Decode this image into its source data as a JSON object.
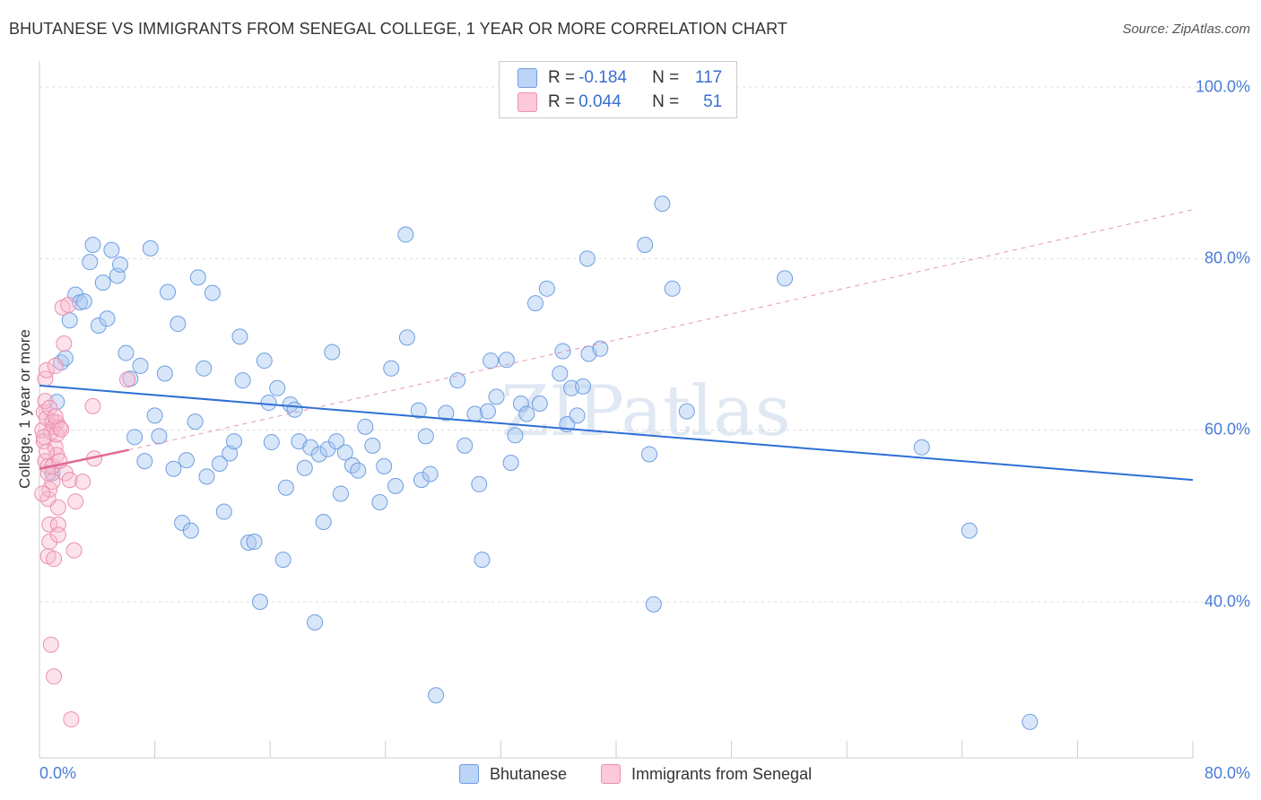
{
  "title": "BHUTANESE VS IMMIGRANTS FROM SENEGAL COLLEGE, 1 YEAR OR MORE CORRELATION CHART",
  "source": "Source: ZipAtlas.com",
  "watermark": "ZIPatlas",
  "legend": {
    "r_label": "R =",
    "n_label": "N =",
    "rows": [
      {
        "r": "-0.184",
        "n": "117",
        "color": "#a9c7f2"
      },
      {
        "r": "0.044",
        "n": "51",
        "color": "#f7b9ce"
      }
    ]
  },
  "chart_data": {
    "type": "scatter",
    "title": "BHUTANESE VS IMMIGRANTS FROM SENEGAL COLLEGE, 1 YEAR OR MORE CORRELATION CHART",
    "xlabel": "",
    "ylabel": "College, 1 year or more",
    "xlim": [
      0,
      80
    ],
    "ylim": [
      20,
      100
    ],
    "x_tick_labels": [
      "0.0%",
      "80.0%"
    ],
    "y_tick_labels": [
      "100.0%",
      "80.0%",
      "60.0%",
      "40.0%"
    ],
    "y_ticks": [
      100,
      80,
      60,
      40
    ],
    "grid": "horizontal dashed",
    "legend_placement": "bottom-center",
    "colors": {
      "Bhutanese": "#6f9fe2",
      "Immigrants from Senegal": "#ec8fb0",
      "trend_blue": "#2e6fd6",
      "trend_pink": "#e06a93"
    },
    "series": [
      {
        "name": "Bhutanese",
        "trend": {
          "x": [
            0,
            80
          ],
          "y": [
            65.2,
            54.2
          ]
        },
        "points": [
          [
            1.2,
            63.3
          ],
          [
            1.5,
            67.9
          ],
          [
            1.8,
            68.4
          ],
          [
            2.1,
            72.8
          ],
          [
            2.5,
            75.8
          ],
          [
            2.8,
            74.9
          ],
          [
            3.1,
            75.0
          ],
          [
            3.5,
            79.6
          ],
          [
            3.7,
            81.6
          ],
          [
            4.1,
            72.2
          ],
          [
            4.4,
            77.2
          ],
          [
            4.7,
            73.0
          ],
          [
            5.0,
            81.0
          ],
          [
            5.4,
            78.0
          ],
          [
            5.6,
            79.3
          ],
          [
            6.0,
            69.0
          ],
          [
            6.3,
            66.0
          ],
          [
            6.6,
            59.2
          ],
          [
            7.0,
            67.5
          ],
          [
            7.3,
            56.4
          ],
          [
            7.7,
            81.2
          ],
          [
            8.0,
            61.7
          ],
          [
            8.3,
            59.3
          ],
          [
            8.7,
            66.6
          ],
          [
            8.9,
            76.1
          ],
          [
            9.3,
            55.5
          ],
          [
            9.6,
            72.4
          ],
          [
            9.9,
            49.2
          ],
          [
            10.2,
            56.5
          ],
          [
            10.5,
            48.3
          ],
          [
            10.8,
            61.0
          ],
          [
            11.0,
            77.8
          ],
          [
            11.4,
            67.2
          ],
          [
            11.6,
            54.6
          ],
          [
            12.0,
            76.0
          ],
          [
            12.5,
            56.1
          ],
          [
            12.8,
            50.5
          ],
          [
            13.2,
            57.3
          ],
          [
            13.5,
            58.7
          ],
          [
            13.9,
            70.9
          ],
          [
            14.1,
            65.8
          ],
          [
            14.5,
            46.9
          ],
          [
            14.9,
            47.0
          ],
          [
            15.3,
            40.0
          ],
          [
            15.6,
            68.1
          ],
          [
            15.9,
            63.2
          ],
          [
            16.1,
            58.6
          ],
          [
            16.5,
            64.9
          ],
          [
            16.9,
            44.9
          ],
          [
            17.1,
            53.3
          ],
          [
            17.4,
            63.0
          ],
          [
            17.7,
            62.4
          ],
          [
            18.0,
            58.7
          ],
          [
            18.4,
            55.6
          ],
          [
            18.8,
            58.0
          ],
          [
            19.1,
            37.6
          ],
          [
            19.4,
            57.2
          ],
          [
            19.7,
            49.3
          ],
          [
            20.0,
            57.8
          ],
          [
            20.3,
            69.1
          ],
          [
            20.6,
            58.7
          ],
          [
            20.9,
            52.6
          ],
          [
            21.2,
            57.4
          ],
          [
            21.7,
            55.9
          ],
          [
            22.1,
            55.3
          ],
          [
            22.6,
            60.4
          ],
          [
            23.1,
            58.2
          ],
          [
            23.6,
            51.6
          ],
          [
            23.9,
            55.8
          ],
          [
            24.4,
            67.2
          ],
          [
            24.7,
            53.5
          ],
          [
            25.5,
            70.8
          ],
          [
            25.4,
            82.8
          ],
          [
            26.3,
            62.3
          ],
          [
            26.5,
            54.2
          ],
          [
            26.8,
            59.3
          ],
          [
            27.1,
            54.9
          ],
          [
            27.5,
            29.1
          ],
          [
            28.2,
            62.0
          ],
          [
            29.0,
            65.8
          ],
          [
            29.5,
            58.2
          ],
          [
            30.2,
            61.9
          ],
          [
            30.5,
            53.7
          ],
          [
            30.7,
            44.9
          ],
          [
            31.1,
            62.2
          ],
          [
            31.3,
            68.1
          ],
          [
            31.7,
            63.9
          ],
          [
            32.4,
            68.2
          ],
          [
            32.7,
            56.2
          ],
          [
            33.0,
            59.4
          ],
          [
            33.4,
            63.1
          ],
          [
            33.8,
            61.9
          ],
          [
            34.4,
            74.8
          ],
          [
            34.7,
            63.1
          ],
          [
            35.2,
            76.5
          ],
          [
            36.1,
            66.6
          ],
          [
            36.3,
            69.2
          ],
          [
            36.6,
            60.7
          ],
          [
            36.9,
            64.9
          ],
          [
            37.3,
            61.7
          ],
          [
            37.7,
            65.1
          ],
          [
            38.1,
            68.9
          ],
          [
            38.9,
            69.5
          ],
          [
            38.0,
            80.0
          ],
          [
            43.2,
            86.4
          ],
          [
            42.0,
            81.6
          ],
          [
            42.3,
            57.2
          ],
          [
            42.6,
            39.7
          ],
          [
            43.9,
            76.5
          ],
          [
            44.9,
            62.2
          ],
          [
            51.7,
            77.7
          ],
          [
            61.2,
            58.0
          ],
          [
            64.5,
            48.3
          ],
          [
            68.7,
            26.0
          ],
          [
            0.9,
            55.0
          ]
        ]
      },
      {
        "name": "Immigrants from Senegal",
        "trend": {
          "x": [
            0,
            6.2
          ],
          "y": [
            55.5,
            57.7
          ]
        },
        "trend_extension": {
          "x": [
            6.2,
            80
          ],
          "y": [
            57.7,
            85.7
          ]
        },
        "points": [
          [
            0.2,
            60.0
          ],
          [
            0.3,
            58.7
          ],
          [
            0.3,
            62.1
          ],
          [
            0.4,
            56.4
          ],
          [
            0.4,
            66.0
          ],
          [
            0.5,
            67.0
          ],
          [
            0.5,
            61.4
          ],
          [
            0.6,
            52.0
          ],
          [
            0.6,
            55.8
          ],
          [
            0.6,
            45.3
          ],
          [
            0.7,
            47.0
          ],
          [
            0.7,
            49.0
          ],
          [
            0.7,
            53.1
          ],
          [
            0.8,
            59.8
          ],
          [
            0.8,
            35.0
          ],
          [
            0.9,
            61.0
          ],
          [
            0.9,
            55.8
          ],
          [
            1.0,
            60.4
          ],
          [
            1.0,
            45.0
          ],
          [
            1.0,
            31.3
          ],
          [
            1.1,
            67.5
          ],
          [
            1.1,
            58.0
          ],
          [
            1.2,
            60.9
          ],
          [
            1.2,
            57.1
          ],
          [
            1.3,
            51.0
          ],
          [
            1.3,
            49.0
          ],
          [
            1.3,
            47.8
          ],
          [
            1.4,
            60.3
          ],
          [
            1.4,
            56.4
          ],
          [
            1.6,
            74.3
          ],
          [
            1.7,
            70.1
          ],
          [
            1.8,
            55.0
          ],
          [
            2.0,
            74.6
          ],
          [
            2.1,
            54.2
          ],
          [
            2.2,
            26.3
          ],
          [
            2.4,
            46.0
          ],
          [
            2.5,
            51.7
          ],
          [
            3.0,
            54.0
          ],
          [
            3.7,
            62.8
          ],
          [
            3.8,
            56.7
          ],
          [
            6.1,
            65.9
          ],
          [
            0.2,
            52.6
          ],
          [
            0.3,
            59.2
          ],
          [
            0.4,
            63.4
          ],
          [
            0.5,
            57.5
          ],
          [
            0.7,
            62.6
          ],
          [
            0.9,
            54.0
          ],
          [
            1.1,
            61.6
          ],
          [
            1.2,
            59.5
          ],
          [
            1.5,
            60.1
          ],
          [
            0.6,
            55.0
          ]
        ]
      }
    ]
  },
  "bottom_legend": [
    {
      "label": "Bhutanese",
      "color": "#a9c7f2"
    },
    {
      "label": "Immigrants from Senegal",
      "color": "#f7b9ce"
    }
  ]
}
